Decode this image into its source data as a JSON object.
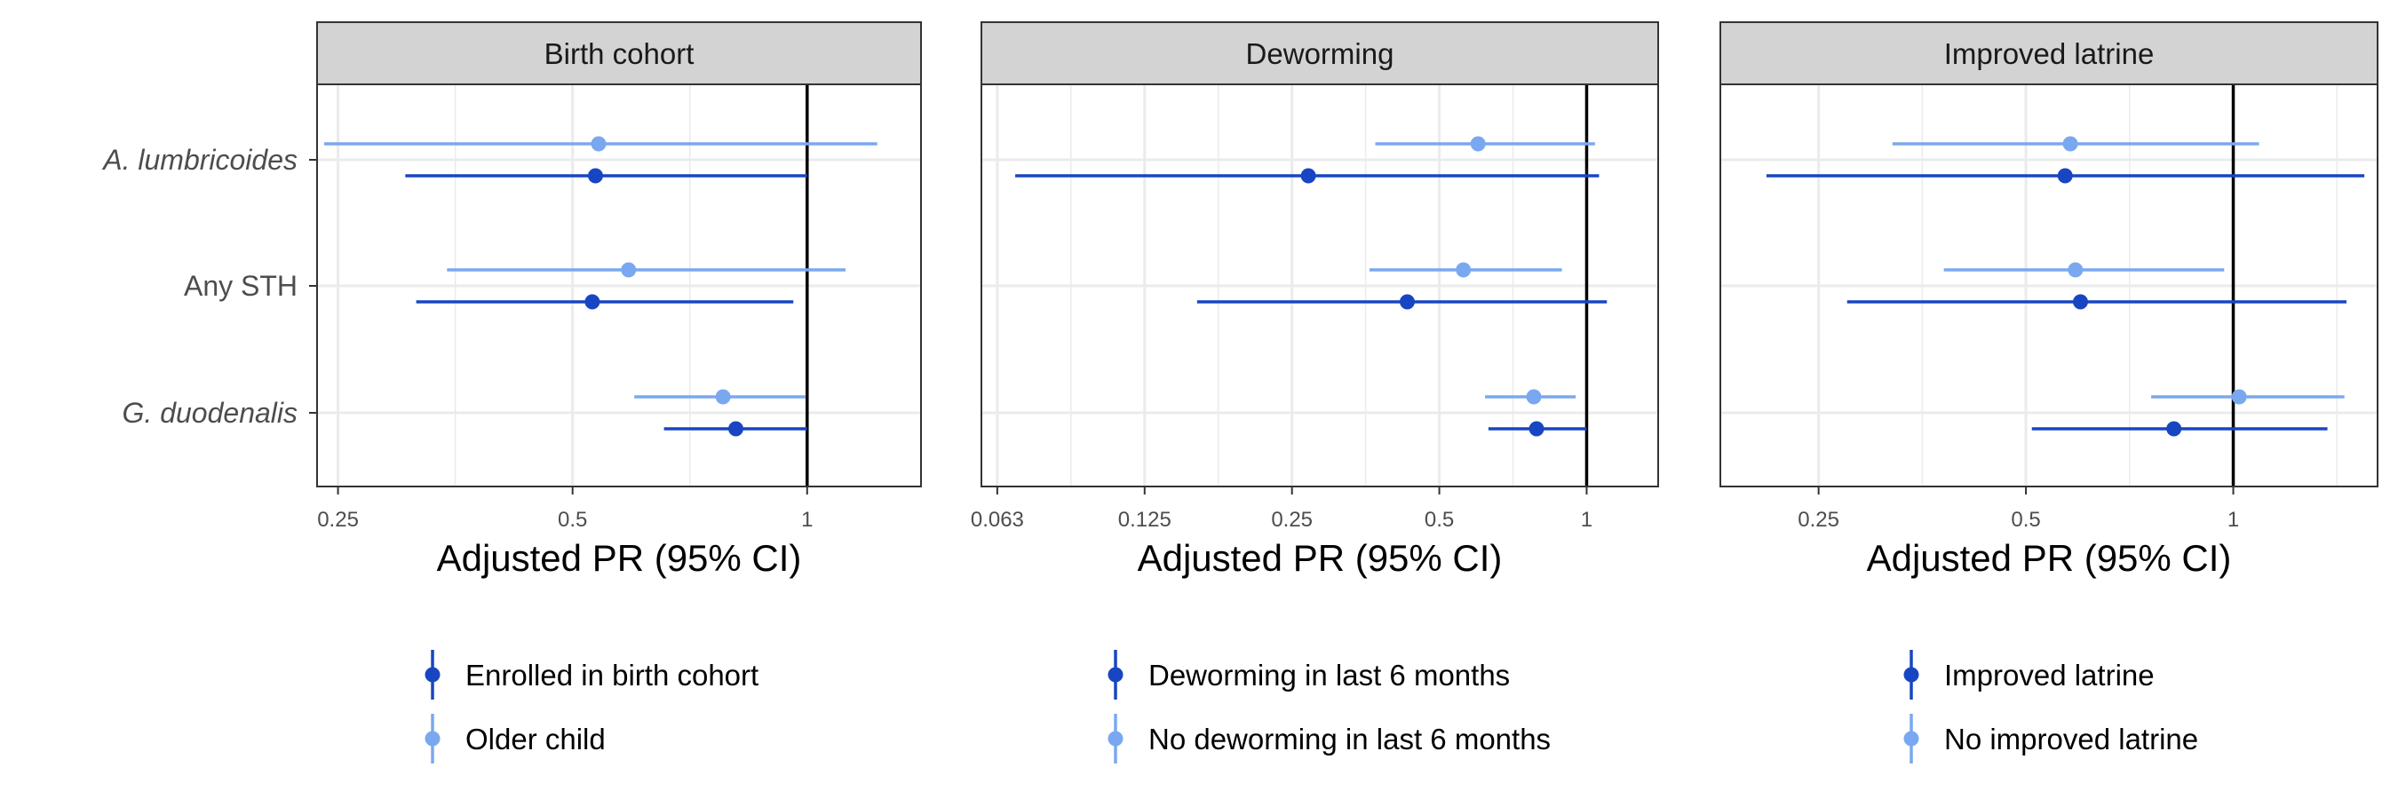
{
  "colors": {
    "dark_blue": "#1846c2",
    "light_blue": "#7aa8f0",
    "strip_fill": "#d3d3d3",
    "grid": "#ebebeb",
    "reference_line": "#000000"
  },
  "chart_data": [
    {
      "type": "forest",
      "facet": "Birth cohort",
      "xlabel": "Adjusted PR (95% CI)",
      "x_scale": "log2",
      "xlim": [
        0.235,
        1.4
      ],
      "x_ticks": [
        0.25,
        0.5,
        1
      ],
      "x_tick_labels": [
        "0.25",
        "0.5",
        "1"
      ],
      "outcomes": [
        "A. lumbricoides",
        "Any STH",
        "G. duodenalis"
      ],
      "reference_line": 1,
      "series": [
        {
          "name": "Enrolled in birth cohort",
          "color": "#1846c2",
          "points": [
            {
              "outcome": "A. lumbricoides",
              "pr": 0.535,
              "lo": 0.305,
              "hi": 1.0
            },
            {
              "outcome": "Any STH",
              "pr": 0.53,
              "lo": 0.315,
              "hi": 0.96
            },
            {
              "outcome": "G. duodenalis",
              "pr": 0.81,
              "lo": 0.655,
              "hi": 1.0
            }
          ]
        },
        {
          "name": "Older child",
          "color": "#7aa8f0",
          "points": [
            {
              "outcome": "A. lumbricoides",
              "pr": 0.54,
              "lo": 0.24,
              "hi": 1.23
            },
            {
              "outcome": "Any STH",
              "pr": 0.59,
              "lo": 0.345,
              "hi": 1.12
            },
            {
              "outcome": "G. duodenalis",
              "pr": 0.78,
              "lo": 0.6,
              "hi": 0.995
            }
          ]
        }
      ],
      "legend_title": ""
    },
    {
      "type": "forest",
      "facet": "Deworming",
      "xlabel": "Adjusted PR (95% CI)",
      "x_scale": "log2",
      "xlim": [
        0.058,
        1.4
      ],
      "x_ticks": [
        0.0625,
        0.125,
        0.25,
        0.5,
        1
      ],
      "x_tick_labels": [
        "0.063",
        "0.125",
        "0.25",
        "0.5",
        "1"
      ],
      "outcomes": [
        "A. lumbricoides",
        "Any STH",
        "G. duodenalis"
      ],
      "reference_line": 1,
      "series": [
        {
          "name": "Deworming in last 6 months",
          "color": "#1846c2",
          "points": [
            {
              "outcome": "A. lumbricoides",
              "pr": 0.27,
              "lo": 0.068,
              "hi": 1.06
            },
            {
              "outcome": "Any STH",
              "pr": 0.43,
              "lo": 0.16,
              "hi": 1.1
            },
            {
              "outcome": "G. duodenalis",
              "pr": 0.79,
              "lo": 0.63,
              "hi": 1.0
            }
          ]
        },
        {
          "name": "No deworming in last 6 months",
          "color": "#7aa8f0",
          "points": [
            {
              "outcome": "A. lumbricoides",
              "pr": 0.6,
              "lo": 0.37,
              "hi": 1.04
            },
            {
              "outcome": "Any STH",
              "pr": 0.56,
              "lo": 0.36,
              "hi": 0.89
            },
            {
              "outcome": "G. duodenalis",
              "pr": 0.78,
              "lo": 0.62,
              "hi": 0.95
            }
          ]
        }
      ],
      "legend_title": ""
    },
    {
      "type": "forest",
      "facet": "Improved latrine",
      "xlabel": "Adjusted PR (95% CI)",
      "x_scale": "log2",
      "xlim": [
        0.18,
        1.62
      ],
      "x_ticks": [
        0.25,
        0.5,
        1
      ],
      "x_tick_labels": [
        "0.25",
        "0.5",
        "1"
      ],
      "outcomes": [
        "A. lumbricoides",
        "Any STH",
        "G. duodenalis"
      ],
      "reference_line": 1,
      "series": [
        {
          "name": "Improved latrine",
          "color": "#1846c2",
          "points": [
            {
              "outcome": "A. lumbricoides",
              "pr": 0.57,
              "lo": 0.21,
              "hi": 1.55
            },
            {
              "outcome": "Any STH",
              "pr": 0.6,
              "lo": 0.275,
              "hi": 1.46
            },
            {
              "outcome": "G. duodenalis",
              "pr": 0.82,
              "lo": 0.51,
              "hi": 1.37
            }
          ]
        },
        {
          "name": "No improved latrine",
          "color": "#7aa8f0",
          "points": [
            {
              "outcome": "A. lumbricoides",
              "pr": 0.58,
              "lo": 0.32,
              "hi": 1.09
            },
            {
              "outcome": "Any STH",
              "pr": 0.59,
              "lo": 0.38,
              "hi": 0.97
            },
            {
              "outcome": "G. duodenalis",
              "pr": 1.02,
              "lo": 0.76,
              "hi": 1.45
            }
          ]
        }
      ],
      "legend_title": ""
    }
  ]
}
